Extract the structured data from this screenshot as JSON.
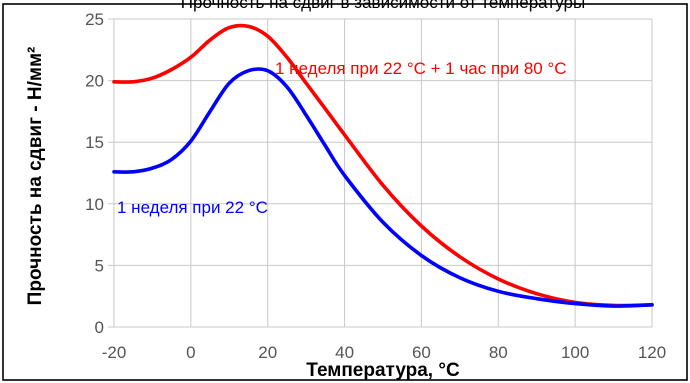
{
  "chart_data": {
    "type": "line",
    "title": "Прочность на сдвиг в зависимости от температуры",
    "xlabel": "Температура, °C",
    "ylabel": "Прочность на сдвиг - Н/мм²",
    "xlim": [
      -20,
      120
    ],
    "ylim": [
      0,
      25
    ],
    "x_ticks": [
      -20,
      0,
      20,
      40,
      60,
      80,
      100,
      120
    ],
    "y_ticks": [
      0,
      5,
      10,
      15,
      20,
      25
    ],
    "grid": true,
    "series": [
      {
        "name": "1 неделя при 22 °C + 1 час при 80 °C",
        "color": "#ff0000",
        "x": [
          -20,
          -15,
          -10,
          -5,
          0,
          5,
          10,
          15,
          20,
          25,
          30,
          35,
          40,
          50,
          60,
          70,
          80,
          90,
          100,
          110,
          120
        ],
        "y": [
          19.9,
          19.9,
          20.2,
          20.9,
          21.9,
          23.3,
          24.3,
          24.4,
          23.6,
          21.9,
          19.8,
          17.7,
          15.6,
          11.5,
          8.2,
          5.7,
          3.9,
          2.7,
          2.0,
          1.75,
          1.8
        ]
      },
      {
        "name": "1 неделя при 22 °C",
        "color": "#0000ff",
        "x": [
          -20,
          -15,
          -10,
          -5,
          0,
          5,
          10,
          15,
          20,
          25,
          30,
          35,
          40,
          50,
          60,
          70,
          80,
          90,
          100,
          110,
          120
        ],
        "y": [
          12.6,
          12.6,
          12.9,
          13.6,
          15.1,
          17.5,
          19.8,
          20.8,
          20.8,
          19.5,
          17.2,
          14.7,
          12.3,
          8.5,
          5.8,
          4.0,
          2.9,
          2.3,
          1.9,
          1.7,
          1.8
        ]
      }
    ]
  }
}
